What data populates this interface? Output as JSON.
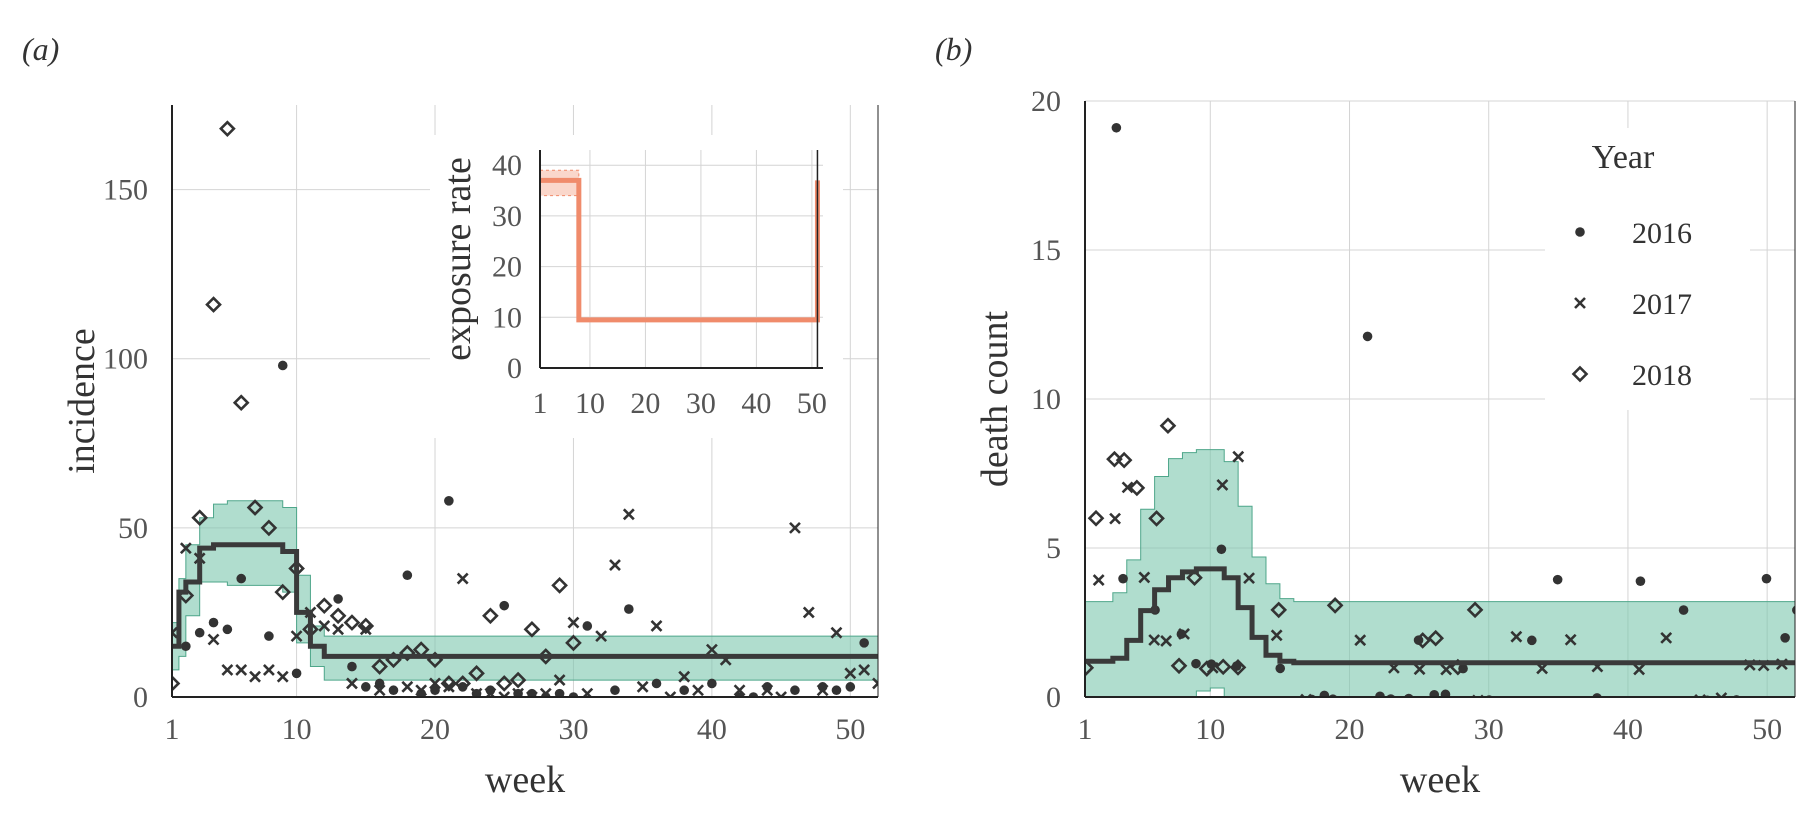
{
  "colors": {
    "band": "#7cc7ad",
    "band_edge": "#4ea68a",
    "line": "#3a3a3a",
    "points": "#333333",
    "inset": "#f08b6b",
    "grid": "#d4d4d4",
    "axis": "#222222"
  },
  "chart_data": [
    {
      "type": "scatter",
      "panel_label": "(a)",
      "xlabel": "week",
      "ylabel": "incidence",
      "xlim": [
        1,
        52
      ],
      "ylim": [
        0,
        175
      ],
      "xticks": [
        1,
        10,
        20,
        30,
        40,
        50
      ],
      "yticks": [
        0,
        50,
        100,
        150
      ],
      "grid": true,
      "series": [
        {
          "name": "2016",
          "marker": "dot",
          "x": [
            2,
            3,
            4,
            5,
            6,
            8,
            9,
            10,
            13,
            14,
            15,
            16,
            17,
            18,
            19,
            20,
            21,
            22,
            23,
            24,
            25,
            26,
            27,
            28,
            29,
            30,
            31,
            33,
            34,
            36,
            38,
            40,
            42,
            43,
            44,
            46,
            48,
            49,
            50,
            51
          ],
          "y": [
            15,
            19,
            22,
            20,
            35,
            18,
            98,
            7,
            29,
            9,
            3,
            4,
            2,
            36,
            1,
            2,
            58,
            3,
            1,
            2,
            27,
            1,
            1,
            0,
            1,
            0,
            21,
            2,
            26,
            4,
            2,
            4,
            0,
            0,
            3,
            2,
            3,
            2,
            3,
            16
          ]
        },
        {
          "name": "2017",
          "marker": "x",
          "x": [
            1,
            2,
            3,
            4,
            5,
            6,
            7,
            8,
            9,
            10,
            11,
            12,
            13,
            14,
            15,
            16,
            18,
            19,
            20,
            21,
            22,
            23,
            24,
            25,
            26,
            27,
            28,
            29,
            30,
            31,
            32,
            33,
            34,
            35,
            36,
            37,
            38,
            39,
            40,
            41,
            42,
            44,
            45,
            46,
            47,
            48,
            49,
            50,
            51,
            52
          ],
          "y": [
            19,
            44,
            41,
            17,
            8,
            8,
            6,
            8,
            6,
            18,
            25,
            21,
            20,
            4,
            20,
            2,
            3,
            2,
            4,
            3,
            35,
            1,
            1,
            0,
            1,
            0,
            1,
            5,
            22,
            1,
            18,
            39,
            54,
            3,
            21,
            0,
            6,
            2,
            14,
            11,
            2,
            2,
            0,
            50,
            25,
            2,
            19,
            7,
            8,
            4
          ]
        },
        {
          "name": "2018",
          "marker": "diamond",
          "x": [
            1,
            2,
            3,
            4,
            5,
            6,
            7,
            8,
            9,
            10,
            11,
            12,
            13,
            14,
            15,
            16,
            17,
            18,
            19,
            20,
            21,
            22,
            23,
            24,
            25,
            26,
            27,
            28,
            29,
            30
          ],
          "y": [
            4,
            30,
            53,
            116,
            168,
            87,
            56,
            50,
            31,
            38,
            20,
            27,
            24,
            22,
            21,
            9,
            11,
            13,
            14,
            11,
            4,
            4,
            7,
            24,
            4,
            5,
            20,
            12,
            33,
            16
          ]
        }
      ],
      "fit": {
        "x": [
          1,
          1.5,
          2,
          3,
          4,
          5,
          6,
          7,
          8,
          9,
          10,
          11,
          12,
          13,
          14,
          15,
          52
        ],
        "y": [
          15,
          31,
          34,
          44,
          45,
          45,
          45,
          45,
          45,
          43,
          25,
          15,
          12,
          12,
          12,
          12,
          12
        ],
        "lower": [
          8,
          12,
          24,
          34,
          34,
          33,
          33,
          33,
          33,
          31,
          16,
          9,
          5,
          5,
          5,
          5,
          5
        ],
        "upper": [
          22,
          35,
          45,
          53,
          57,
          58,
          58,
          58,
          58,
          56,
          36,
          21,
          18,
          18,
          18,
          18,
          18
        ]
      },
      "inset": {
        "type": "line",
        "ylabel": "exposure rate",
        "xlim": [
          1,
          52
        ],
        "ylim": [
          0,
          43
        ],
        "xticks": [
          1,
          10,
          20,
          30,
          40,
          50
        ],
        "yticks": [
          0,
          10,
          20,
          30,
          40
        ],
        "x": [
          1,
          8,
          8,
          51,
          51
        ],
        "y": [
          37,
          37,
          9.5,
          9.5,
          37
        ],
        "band_x": [
          1,
          8
        ],
        "band_lower": [
          34,
          34
        ],
        "band_upper": [
          39,
          39
        ]
      }
    },
    {
      "type": "scatter",
      "panel_label": "(b)",
      "xlabel": "week",
      "ylabel": "death count",
      "xlim": [
        1,
        52
      ],
      "ylim": [
        0,
        20
      ],
      "xticks": [
        1,
        10,
        20,
        30,
        40,
        50
      ],
      "yticks": [
        0,
        5,
        10,
        15,
        20
      ],
      "grid": true,
      "legend": {
        "title": "Year",
        "placement": "top-right",
        "entries": [
          "2016",
          "2017",
          "2018"
        ]
      },
      "series": [
        {
          "name": "2016",
          "marker": "dot",
          "x": [
            3,
            4,
            6,
            8,
            9,
            10,
            11,
            12,
            15,
            17,
            18,
            19,
            21,
            22,
            23,
            24,
            25,
            26,
            27,
            28,
            30,
            33,
            35,
            38,
            41,
            44,
            46,
            48,
            50,
            51,
            52
          ],
          "y": [
            19,
            4,
            3,
            2,
            1,
            1,
            5,
            1,
            1,
            0,
            0,
            0,
            12,
            0,
            0,
            0,
            2,
            0,
            0,
            1,
            0,
            2,
            4,
            0,
            4,
            3,
            0,
            0,
            4,
            2,
            3
          ],
          "jittered": true
        },
        {
          "name": "2017",
          "marker": "x",
          "x": [
            2,
            3,
            4,
            5,
            6,
            7,
            8,
            10,
            11,
            12,
            13,
            15,
            17,
            21,
            23,
            25,
            27,
            29,
            32,
            34,
            36,
            38,
            41,
            43,
            45,
            47,
            49,
            50,
            51
          ],
          "y": [
            4,
            6,
            7,
            4,
            2,
            2,
            2,
            1,
            7,
            8,
            4,
            2,
            0,
            2,
            1,
            1,
            1,
            0,
            2,
            1,
            2,
            1,
            1,
            2,
            0,
            0,
            1,
            1,
            1
          ],
          "jittered": true
        },
        {
          "name": "2018",
          "marker": "diamond",
          "x": [
            1,
            2,
            3,
            4,
            5,
            6,
            7,
            8,
            9,
            10,
            11,
            12,
            15,
            19,
            25,
            26,
            28,
            29
          ],
          "y": [
            1,
            6,
            8,
            8,
            7,
            6,
            9,
            1,
            4,
            1,
            1,
            1,
            3,
            3,
            2,
            2,
            1,
            3
          ],
          "jittered": true
        }
      ],
      "fit": {
        "x": [
          1,
          3,
          4,
          5,
          6,
          7,
          8,
          9,
          10,
          11,
          12,
          13,
          14,
          15,
          16,
          17,
          52
        ],
        "y": [
          1.2,
          1.3,
          1.9,
          2.9,
          3.6,
          4.0,
          4.2,
          4.3,
          4.3,
          4.0,
          3.0,
          2.0,
          1.4,
          1.2,
          1.15,
          1.15,
          1.15
        ],
        "lower": [
          0,
          0,
          0,
          0,
          0,
          0,
          0,
          0.2,
          0.3,
          0,
          0,
          0,
          0,
          0,
          0,
          0,
          0
        ],
        "upper": [
          3.2,
          3.5,
          4.6,
          6.3,
          7.4,
          8.0,
          8.2,
          8.3,
          8.3,
          7.9,
          6.4,
          4.7,
          3.8,
          3.3,
          3.2,
          3.2,
          3.2
        ]
      }
    }
  ]
}
